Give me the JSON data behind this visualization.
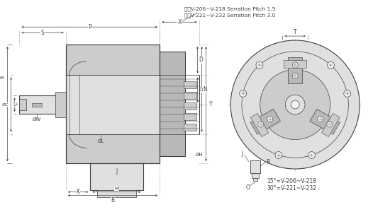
{
  "bg_color": "#ffffff",
  "line_color": "#404040",
  "fill_dark": "#b8b8b8",
  "fill_mid": "#cccccc",
  "fill_light": "#e0e0e0",
  "fill_white": "#f5f5f5",
  "annotation_line1": "排屑V-206~V-218 Serration Pitch 1.5",
  "annotation_line2": "排屑V-221~V-232 Serration Pitch 3.0",
  "bottom_line1": "15°=V-206~V-218",
  "bottom_line2": "30°=V-221~V-232"
}
